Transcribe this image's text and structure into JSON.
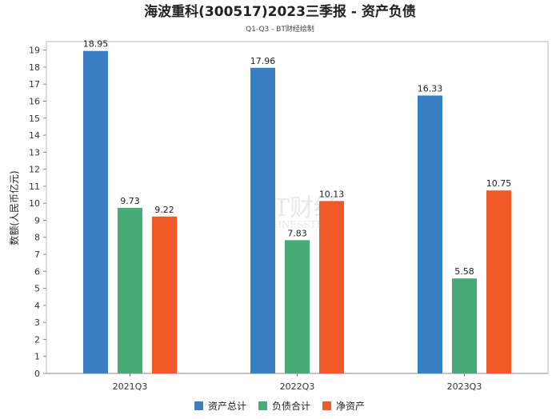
{
  "chart_data": {
    "type": "bar",
    "title": "海波重科(300517)2023三季报 - 资产负债",
    "subtitle": "Q1-Q3 - BT财经绘制",
    "ylabel": "数额(人民币亿元)",
    "xlabel": "",
    "categories": [
      "2021Q3",
      "2022Q3",
      "2023Q3"
    ],
    "ylim": [
      0,
      19.5
    ],
    "yticks": [
      0,
      1,
      2,
      3,
      4,
      5,
      6,
      7,
      8,
      9,
      10,
      11,
      12,
      13,
      14,
      15,
      16,
      17,
      18,
      19
    ],
    "grid": false,
    "legend_position": "bottom-center",
    "series": [
      {
        "name": "资产总计",
        "color": "#3a7fc1",
        "values": [
          18.95,
          17.96,
          16.33
        ],
        "labels": [
          "18.95",
          "17.96",
          "16.33"
        ]
      },
      {
        "name": "负债合计",
        "color": "#46ab77",
        "values": [
          9.73,
          7.83,
          5.58
        ],
        "labels": [
          "9.73",
          "7.83",
          "5.58"
        ]
      },
      {
        "name": "净资产",
        "color": "#f05a28",
        "values": [
          9.22,
          10.13,
          10.75
        ],
        "labels": [
          "9.22",
          "10.13",
          "10.75"
        ]
      }
    ],
    "watermark": {
      "main": "BT财经",
      "sub": "BUSINESSTIMES"
    }
  }
}
